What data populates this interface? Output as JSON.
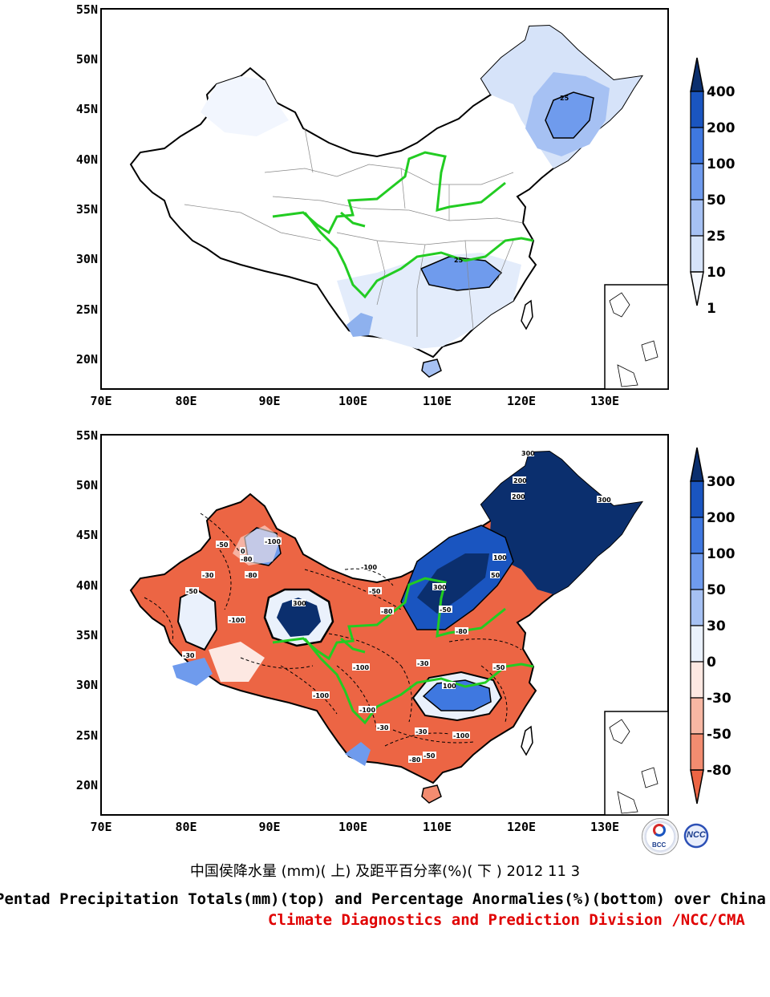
{
  "top_panel": {
    "lat_labels": [
      "55N",
      "50N",
      "45N",
      "40N",
      "35N",
      "30N",
      "25N",
      "20N"
    ],
    "lon_labels": [
      "70E",
      "80E",
      "90E",
      "100E",
      "110E",
      "120E",
      "130E"
    ],
    "colorbar_labels": [
      "400",
      "200",
      "100",
      "50",
      "25",
      "10",
      "1"
    ],
    "colorbar_colors": [
      "#0b2f6e",
      "#1a55c0",
      "#3f78e0",
      "#6f9bed",
      "#a6c1f3",
      "#d6e3f9",
      "#f5f8fe"
    ],
    "contour_labels": [
      "25",
      "25"
    ]
  },
  "bottom_panel": {
    "lat_labels": [
      "55N",
      "50N",
      "45N",
      "40N",
      "35N",
      "30N",
      "25N",
      "20N"
    ],
    "lon_labels": [
      "70E",
      "80E",
      "90E",
      "100E",
      "110E",
      "120E",
      "130E"
    ],
    "colorbar_labels": [
      "300",
      "200",
      "100",
      "50",
      "30",
      "0",
      "-30",
      "-50",
      "-80"
    ],
    "colorbar_colors": [
      "#0b2f6e",
      "#1a55c0",
      "#3f78e0",
      "#6f9bed",
      "#a6c1f3",
      "#eaf1fc",
      "#fde8e2",
      "#f7b7a3",
      "#f28c70",
      "#ec6544"
    ],
    "contour_labels": [
      "300",
      "200",
      "300",
      "200",
      "100",
      "50",
      "300",
      "-50",
      "-100",
      "-80",
      "-100",
      "-50",
      "-30",
      "-100",
      "300",
      "-80",
      "-100",
      "-30",
      "-50",
      "-100",
      "-80",
      "-100",
      "-50",
      "100",
      "-30",
      "-30",
      "-80",
      "-100",
      "-50",
      "0",
      "-50",
      "-30",
      "-80"
    ]
  },
  "footer": {
    "title_cn": "中国侯降水量 (mm)( 上) 及距平百分率(%)( 下 ) 2012 11 3",
    "title_en": "Pentad Precipitation Totals(mm)(top) and Percentage Anormalies(%)(bottom) over China",
    "org": "Climate Diagnostics and Prediction Division /NCC/CMA",
    "logo_left": "BCC",
    "logo_right": "NCC"
  }
}
